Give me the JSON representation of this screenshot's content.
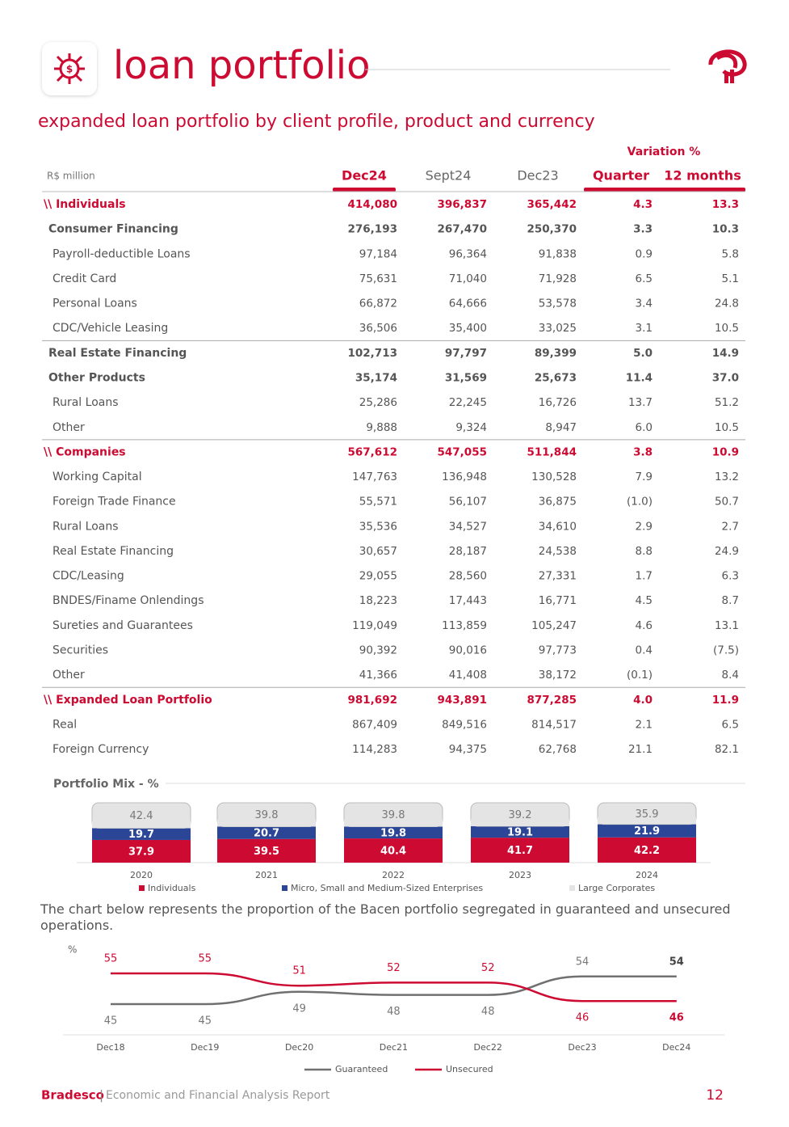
{
  "header": {
    "title": "loan portfolio",
    "subtitle": "expanded loan portfolio by client profile, product and currency"
  },
  "table": {
    "unit": "R$ million",
    "group_header": "Variation %",
    "columns": [
      "Dec24",
      "Sept24",
      "Dec23",
      "Quarter",
      "12 months"
    ],
    "rows": [
      {
        "label": "\\\\ Individuals",
        "cells": [
          "414,080",
          "396,837",
          "365,442",
          "4.3",
          "13.3"
        ],
        "style": "total"
      },
      {
        "label": "Consumer Financing",
        "cells": [
          "276,193",
          "267,470",
          "250,370",
          "3.3",
          "10.3"
        ],
        "style": "subtotal"
      },
      {
        "label": "Payroll-deductible Loans",
        "cells": [
          "97,184",
          "96,364",
          "91,838",
          "0.9",
          "5.8"
        ],
        "style": "item"
      },
      {
        "label": "Credit Card",
        "cells": [
          "75,631",
          "71,040",
          "71,928",
          "6.5",
          "5.1"
        ],
        "style": "item"
      },
      {
        "label": "Personal Loans",
        "cells": [
          "66,872",
          "64,666",
          "53,578",
          "3.4",
          "24.8"
        ],
        "style": "item"
      },
      {
        "label": "CDC/Vehicle Leasing",
        "cells": [
          "36,506",
          "35,400",
          "33,025",
          "3.1",
          "10.5"
        ],
        "style": "item"
      },
      {
        "label": "Real Estate Financing",
        "cells": [
          "102,713",
          "97,797",
          "89,399",
          "5.0",
          "14.9"
        ],
        "style": "subtotal"
      },
      {
        "label": "Other Products",
        "cells": [
          "35,174",
          "31,569",
          "25,673",
          "11.4",
          "37.0"
        ],
        "style": "subtotal"
      },
      {
        "label": "Rural Loans",
        "cells": [
          "25,286",
          "22,245",
          "16,726",
          "13.7",
          "51.2"
        ],
        "style": "item"
      },
      {
        "label": "Other",
        "cells": [
          "9,888",
          "9,324",
          "8,947",
          "6.0",
          "10.5"
        ],
        "style": "item"
      },
      {
        "label": "\\\\ Companies",
        "cells": [
          "567,612",
          "547,055",
          "511,844",
          "3.8",
          "10.9"
        ],
        "style": "total"
      },
      {
        "label": "Working Capital",
        "cells": [
          "147,763",
          "136,948",
          "130,528",
          "7.9",
          "13.2"
        ],
        "style": "item"
      },
      {
        "label": "Foreign Trade Finance",
        "cells": [
          "55,571",
          "56,107",
          "36,875",
          "(1.0)",
          "50.7"
        ],
        "style": "item"
      },
      {
        "label": "Rural Loans",
        "cells": [
          "35,536",
          "34,527",
          "34,610",
          "2.9",
          "2.7"
        ],
        "style": "item"
      },
      {
        "label": "Real Estate Financing",
        "cells": [
          "30,657",
          "28,187",
          "24,538",
          "8.8",
          "24.9"
        ],
        "style": "item"
      },
      {
        "label": "CDC/Leasing",
        "cells": [
          "29,055",
          "28,560",
          "27,331",
          "1.7",
          "6.3"
        ],
        "style": "item"
      },
      {
        "label": "BNDES/Finame Onlendings",
        "cells": [
          "18,223",
          "17,443",
          "16,771",
          "4.5",
          "8.7"
        ],
        "style": "item"
      },
      {
        "label": "Sureties and Guarantees",
        "cells": [
          "119,049",
          "113,859",
          "105,247",
          "4.6",
          "13.1"
        ],
        "style": "item"
      },
      {
        "label": "Securities",
        "cells": [
          "90,392",
          "90,016",
          "97,773",
          "0.4",
          "(7.5)"
        ],
        "style": "item"
      },
      {
        "label": "Other",
        "cells": [
          "41,366",
          "41,408",
          "38,172",
          "(0.1)",
          "8.4"
        ],
        "style": "item"
      },
      {
        "label": "\\\\ Expanded Loan Portfolio",
        "cells": [
          "981,692",
          "943,891",
          "877,285",
          "4.0",
          "11.9"
        ],
        "style": "total"
      },
      {
        "label": "Real",
        "cells": [
          "867,409",
          "849,516",
          "814,517",
          "2.1",
          "6.5"
        ],
        "style": "item"
      },
      {
        "label": "Foreign Currency",
        "cells": [
          "114,283",
          "94,375",
          "62,768",
          "21.1",
          "82.1"
        ],
        "style": "item"
      }
    ]
  },
  "chart_data": [
    {
      "type": "bar",
      "stacked": true,
      "title": "Portfolio Mix - %",
      "categories": [
        "2020",
        "2021",
        "2022",
        "2023",
        "2024"
      ],
      "series": [
        {
          "name": "Individuals",
          "color": "#cc0a32",
          "values": [
            37.9,
            39.5,
            40.4,
            41.7,
            42.2
          ]
        },
        {
          "name": "Micro, Small and Medium-Sized Enterprises",
          "color": "#2b4597",
          "values": [
            19.7,
            20.7,
            19.8,
            19.1,
            21.9
          ]
        },
        {
          "name": "Large Corporates",
          "color": "#e4e4e4",
          "values": [
            42.4,
            39.8,
            39.8,
            39.2,
            35.9
          ]
        }
      ]
    },
    {
      "type": "line",
      "ylabel": "%",
      "categories": [
        "Dec18",
        "Dec19",
        "Dec20",
        "Dec21",
        "Dec22",
        "Dec23",
        "Dec24"
      ],
      "series": [
        {
          "name": "Guaranteed",
          "color": "#707070",
          "values": [
            45,
            45,
            49,
            48,
            48,
            54,
            54
          ]
        },
        {
          "name": "Unsecured",
          "color": "#cc0a32",
          "values": [
            55,
            55,
            51,
            52,
            52,
            46,
            46
          ]
        }
      ]
    }
  ],
  "note": "The chart below represents the proportion of the Bacen portfolio segregated in guaranteed and unsecured operations.",
  "footer": {
    "brand": "Bradesco",
    "separator": "|",
    "report": "Economic and Financial Analysis Report",
    "page": "12"
  }
}
